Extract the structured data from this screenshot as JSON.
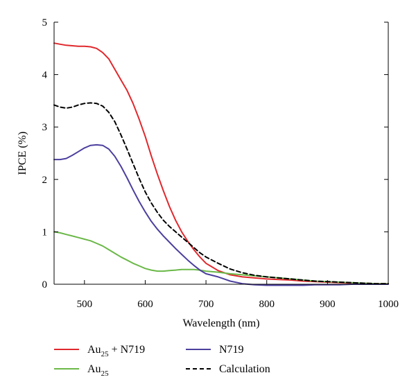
{
  "chart_data": {
    "type": "line",
    "title": "",
    "xlabel": "Wavelength (nm)",
    "ylabel": "IPCE (%)",
    "xlim": [
      450,
      1000
    ],
    "ylim": [
      0,
      5
    ],
    "xticks": [
      500,
      600,
      700,
      800,
      900,
      1000
    ],
    "yticks": [
      0,
      1,
      2,
      3,
      4,
      5
    ],
    "grid": false,
    "legend_position": "bottom",
    "series": [
      {
        "name": "Au25 + N719",
        "label_base": "Au",
        "label_sub": "25",
        "label_rest": " + N719",
        "color": "#e0282c",
        "dash": "solid",
        "x": [
          450,
          460,
          470,
          480,
          490,
          500,
          510,
          520,
          530,
          540,
          550,
          560,
          570,
          580,
          590,
          600,
          610,
          620,
          630,
          640,
          650,
          660,
          670,
          680,
          690,
          700,
          720,
          740,
          760,
          780,
          800,
          820,
          840,
          860,
          880,
          900,
          920,
          940,
          960,
          980,
          1000
        ],
        "y": [
          4.6,
          4.58,
          4.56,
          4.55,
          4.54,
          4.54,
          4.53,
          4.5,
          4.42,
          4.3,
          4.1,
          3.9,
          3.7,
          3.45,
          3.15,
          2.82,
          2.45,
          2.1,
          1.78,
          1.48,
          1.22,
          1.0,
          0.82,
          0.66,
          0.52,
          0.4,
          0.26,
          0.18,
          0.14,
          0.12,
          0.1,
          0.09,
          0.08,
          0.06,
          0.05,
          0.04,
          0.03,
          0.02,
          0.02,
          0.01,
          0.01
        ]
      },
      {
        "name": "Au25",
        "label_base": "Au",
        "label_sub": "25",
        "label_rest": "",
        "color": "#6ab847",
        "dash": "solid",
        "x": [
          450,
          460,
          470,
          480,
          490,
          500,
          510,
          520,
          530,
          540,
          550,
          560,
          570,
          580,
          590,
          600,
          610,
          620,
          630,
          640,
          650,
          660,
          670,
          680,
          690,
          700,
          720,
          740,
          760,
          780,
          800,
          820,
          840,
          860,
          880,
          900,
          920,
          940,
          960,
          980,
          1000
        ],
        "y": [
          1.0,
          0.98,
          0.95,
          0.92,
          0.89,
          0.86,
          0.83,
          0.78,
          0.73,
          0.66,
          0.59,
          0.52,
          0.46,
          0.4,
          0.35,
          0.3,
          0.27,
          0.25,
          0.25,
          0.26,
          0.27,
          0.28,
          0.28,
          0.28,
          0.27,
          0.25,
          0.23,
          0.2,
          0.18,
          0.16,
          0.14,
          0.12,
          0.1,
          0.08,
          0.06,
          0.05,
          0.04,
          0.03,
          0.02,
          0.01,
          0.01
        ]
      },
      {
        "name": "N719",
        "label_base": "N719",
        "label_sub": "",
        "label_rest": "",
        "color": "#4b3f9e",
        "dash": "solid",
        "x": [
          450,
          460,
          470,
          480,
          490,
          500,
          510,
          520,
          530,
          540,
          550,
          560,
          570,
          580,
          590,
          600,
          610,
          620,
          630,
          640,
          650,
          660,
          670,
          680,
          690,
          700,
          710,
          720,
          730,
          740,
          760,
          780,
          800,
          820,
          840,
          860,
          880,
          900,
          920,
          940,
          960,
          980,
          1000
        ],
        "y": [
          2.38,
          2.38,
          2.4,
          2.46,
          2.53,
          2.6,
          2.65,
          2.66,
          2.65,
          2.58,
          2.44,
          2.25,
          2.03,
          1.8,
          1.58,
          1.38,
          1.2,
          1.05,
          0.92,
          0.8,
          0.68,
          0.57,
          0.46,
          0.36,
          0.27,
          0.2,
          0.17,
          0.14,
          0.1,
          0.06,
          0.01,
          -0.01,
          -0.02,
          -0.02,
          -0.02,
          -0.02,
          -0.01,
          -0.01,
          -0.01,
          0,
          0,
          0,
          0
        ]
      },
      {
        "name": "Calculation",
        "label_base": "Calculation",
        "label_sub": "",
        "label_rest": "",
        "color": "#000000",
        "dash": "dashed",
        "x": [
          450,
          460,
          470,
          480,
          490,
          500,
          510,
          520,
          530,
          540,
          550,
          560,
          570,
          580,
          590,
          600,
          610,
          620,
          630,
          640,
          650,
          660,
          670,
          680,
          690,
          700,
          720,
          740,
          760,
          780,
          800,
          820,
          840,
          860,
          880,
          900,
          920,
          940,
          960,
          980,
          1000
        ],
        "y": [
          3.42,
          3.38,
          3.36,
          3.38,
          3.42,
          3.45,
          3.46,
          3.45,
          3.4,
          3.28,
          3.1,
          2.85,
          2.58,
          2.3,
          2.02,
          1.76,
          1.55,
          1.37,
          1.22,
          1.1,
          1.0,
          0.9,
          0.8,
          0.7,
          0.6,
          0.52,
          0.4,
          0.29,
          0.22,
          0.17,
          0.14,
          0.12,
          0.1,
          0.08,
          0.06,
          0.05,
          0.04,
          0.03,
          0.02,
          0.01,
          0.01
        ]
      }
    ]
  }
}
